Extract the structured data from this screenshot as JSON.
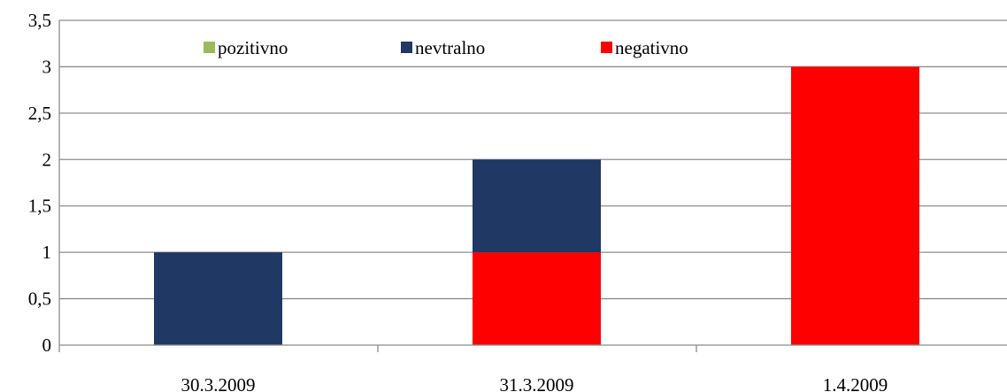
{
  "chart_data": {
    "type": "bar",
    "stacked": true,
    "categories": [
      "30.3.2009",
      "31.3.2009",
      "1.4.2009"
    ],
    "series": [
      {
        "name": "negativno",
        "color": "#ff0000",
        "values": [
          0,
          1,
          3
        ]
      },
      {
        "name": "nevtralno",
        "color": "#1f3864",
        "values": [
          1,
          1,
          0
        ]
      },
      {
        "name": "pozitivno",
        "color": "#9bbb59",
        "values": [
          0,
          0,
          0
        ]
      }
    ],
    "legend_order": [
      "pozitivno",
      "nevtralno",
      "negativno"
    ],
    "ylim": [
      0,
      3.5
    ],
    "yticks": [
      "0",
      "0,5",
      "1",
      "1,5",
      "2",
      "2,5",
      "3",
      "3,5"
    ],
    "grid": true,
    "legend_position": "top"
  }
}
